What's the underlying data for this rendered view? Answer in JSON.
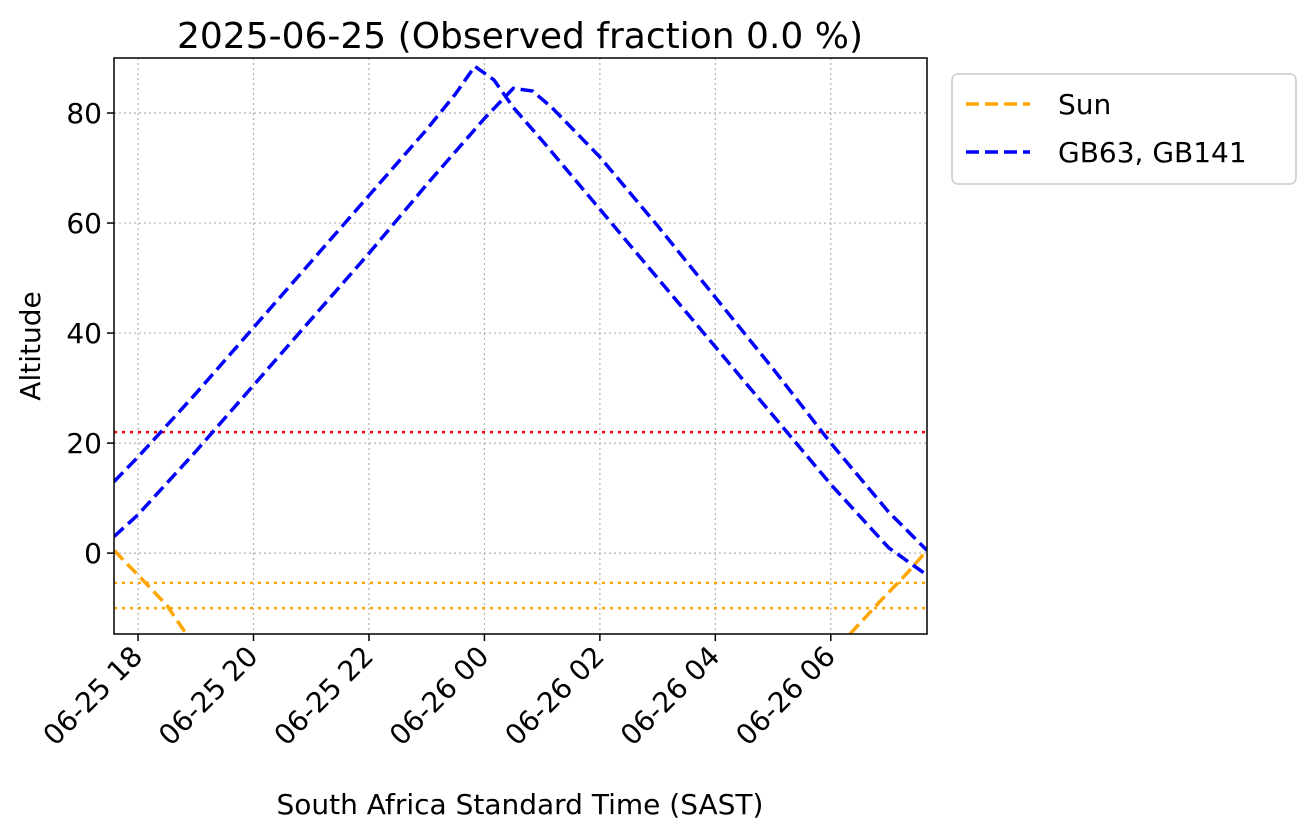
{
  "chart_data": {
    "type": "line",
    "title": "2025-06-25 (Observed fraction 0.0 %)",
    "xlabel": "South Africa Standard Time (SAST)",
    "ylabel": "Altitude",
    "x_range": [
      "2025-06-25 17:35",
      "2025-06-26 07:40"
    ],
    "ylim": [
      -14.7,
      90
    ],
    "xticks": [
      "06-25 18",
      "06-25 20",
      "06-25 22",
      "06-26 00",
      "06-26 02",
      "06-26 04",
      "06-26 06"
    ],
    "xtick_times": [
      "2025-06-25 18:00",
      "2025-06-25 20:00",
      "2025-06-25 22:00",
      "2025-06-26 00:00",
      "2025-06-26 02:00",
      "2025-06-26 04:00",
      "2025-06-26 06:00"
    ],
    "yticks": [
      0,
      20,
      40,
      60,
      80
    ],
    "grid": true,
    "legend_position": "outside-top-right",
    "series": [
      {
        "name": "Sun",
        "color": "#FFA500",
        "style": "dashed",
        "segments": [
          [
            [
              "2025-06-25 17:35",
              0.5
            ],
            [
              "2025-06-25 18:00",
              -4.0
            ],
            [
              "2025-06-25 18:30",
              -9.5
            ],
            [
              "2025-06-25 18:50",
              -14.7
            ]
          ],
          [
            [
              "2025-06-26 06:20",
              -14.7
            ],
            [
              "2025-06-26 06:50",
              -9.0
            ],
            [
              "2025-06-26 07:20",
              -3.5
            ],
            [
              "2025-06-26 07:40",
              0.5
            ]
          ]
        ]
      },
      {
        "name": "GB63, GB141",
        "color": "#0000FF",
        "style": "dashed",
        "segments": [
          [
            [
              "2025-06-25 17:35",
              13.0
            ],
            [
              "2025-06-25 18:00",
              17.5
            ],
            [
              "2025-06-25 19:00",
              29.0
            ],
            [
              "2025-06-25 20:00",
              41.0
            ],
            [
              "2025-06-25 21:00",
              53.0
            ],
            [
              "2025-06-25 22:00",
              65.0
            ],
            [
              "2025-06-25 23:00",
              77.0
            ],
            [
              "2025-06-25 23:30",
              83.5
            ],
            [
              "2025-06-25 23:50",
              88.5
            ],
            [
              "2025-06-26 00:10",
              86.0
            ],
            [
              "2025-06-26 00:30",
              81.0
            ],
            [
              "2025-06-26 01:00",
              75.0
            ],
            [
              "2025-06-26 02:00",
              62.5
            ],
            [
              "2025-06-26 03:00",
              50.0
            ],
            [
              "2025-06-26 04:00",
              37.5
            ],
            [
              "2025-06-26 05:00",
              25.0
            ],
            [
              "2025-06-26 06:00",
              12.5
            ],
            [
              "2025-06-26 07:00",
              1.0
            ],
            [
              "2025-06-26 07:40",
              -4.0
            ]
          ],
          [
            [
              "2025-06-25 17:35",
              3.0
            ],
            [
              "2025-06-25 18:00",
              7.0
            ],
            [
              "2025-06-25 19:00",
              18.5
            ],
            [
              "2025-06-25 20:00",
              30.5
            ],
            [
              "2025-06-25 21:00",
              42.5
            ],
            [
              "2025-06-25 22:00",
              54.5
            ],
            [
              "2025-06-25 23:00",
              67.0
            ],
            [
              "2025-06-26 00:00",
              79.0
            ],
            [
              "2025-06-26 00:30",
              84.5
            ],
            [
              "2025-06-26 00:50",
              84.0
            ],
            [
              "2025-06-26 01:10",
              81.0
            ],
            [
              "2025-06-26 02:00",
              72.0
            ],
            [
              "2025-06-26 03:00",
              59.5
            ],
            [
              "2025-06-26 04:00",
              46.5
            ],
            [
              "2025-06-26 05:00",
              33.5
            ],
            [
              "2025-06-26 06:00",
              20.0
            ],
            [
              "2025-06-26 07:00",
              7.5
            ],
            [
              "2025-06-26 07:40",
              0.5
            ]
          ]
        ]
      }
    ],
    "reference_lines": [
      {
        "y": 22,
        "color": "#FF0000",
        "style": "dotted"
      },
      {
        "y": -5.4,
        "color": "#FFA500",
        "style": "dotted"
      },
      {
        "y": -10,
        "color": "#FFA500",
        "style": "dotted"
      }
    ]
  }
}
